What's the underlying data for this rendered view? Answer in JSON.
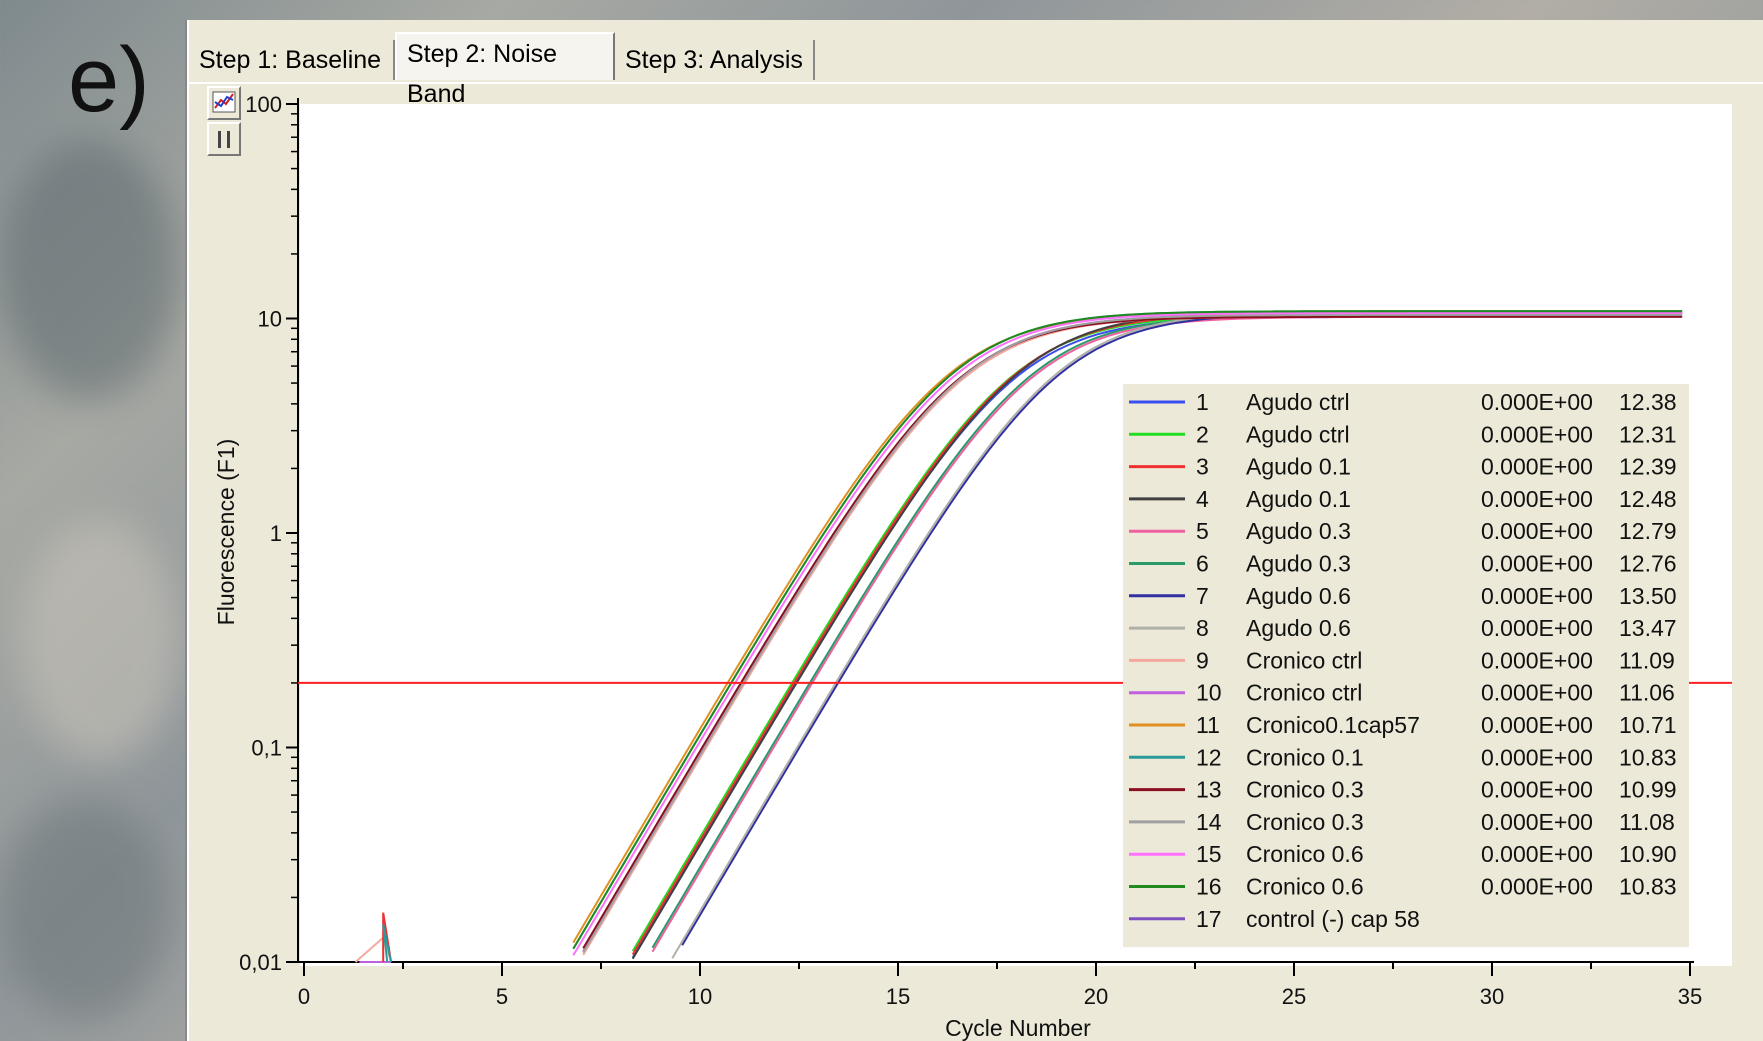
{
  "figure_label": "e)",
  "tabs": [
    {
      "label": "Step 1: Baseline",
      "active": false
    },
    {
      "label": "Step 2: Noise Band",
      "active": true
    },
    {
      "label": "Step 3: Analysis",
      "active": false
    }
  ],
  "tool_icons": [
    "chart-view-icon",
    "pause-icon"
  ],
  "chart_data": {
    "type": "line",
    "xlabel": "Cycle Number",
    "ylabel": "Fluorescence (F1)",
    "xlim": [
      0,
      35
    ],
    "ylim": [
      0.01,
      100
    ],
    "y_scale": "log",
    "x_ticks": [
      "0",
      "5",
      "10",
      "15",
      "20",
      "25",
      "30",
      "35"
    ],
    "y_ticks": [
      "0,01",
      "0,1",
      "1",
      "10",
      "100"
    ],
    "threshold": 0.2,
    "threshold_color": "#ff2020",
    "legend_placement": "right",
    "plateau": 10.5,
    "series": [
      {
        "num": "1",
        "name": "Agudo ctrl",
        "param": "0.000E+00",
        "ct": "12.38",
        "color": "#3a4ef0"
      },
      {
        "num": "2",
        "name": "Agudo ctrl",
        "param": "0.000E+00",
        "ct": "12.31",
        "color": "#22dd22"
      },
      {
        "num": "3",
        "name": "Agudo 0.1",
        "param": "0.000E+00",
        "ct": "12.39",
        "color": "#f03030"
      },
      {
        "num": "4",
        "name": "Agudo 0.1",
        "param": "0.000E+00",
        "ct": "12.48",
        "color": "#404040"
      },
      {
        "num": "5",
        "name": "Agudo 0.3",
        "param": "0.000E+00",
        "ct": "12.79",
        "color": "#f060a0"
      },
      {
        "num": "6",
        "name": "Agudo 0.3",
        "param": "0.000E+00",
        "ct": "12.76",
        "color": "#2a9a6a"
      },
      {
        "num": "7",
        "name": "Agudo 0.6",
        "param": "0.000E+00",
        "ct": "13.50",
        "color": "#3030a0"
      },
      {
        "num": "8",
        "name": "Agudo 0.6",
        "param": "0.000E+00",
        "ct": "13.47",
        "color": "#b0b0a8"
      },
      {
        "num": "9",
        "name": "Cronico ctrl",
        "param": "0.000E+00",
        "ct": "11.09",
        "color": "#f4a8a0"
      },
      {
        "num": "10",
        "name": "Cronico ctrl",
        "param": "0.000E+00",
        "ct": "11.06",
        "color": "#c060e0"
      },
      {
        "num": "11",
        "name": "Cronico0.1cap57",
        "param": "0.000E+00",
        "ct": "10.71",
        "color": "#e09020"
      },
      {
        "num": "12",
        "name": "Cronico 0.1",
        "param": "0.000E+00",
        "ct": "10.83",
        "color": "#2a9a9a"
      },
      {
        "num": "13",
        "name": "Cronico 0.3",
        "param": "0.000E+00",
        "ct": "10.99",
        "color": "#8a1020"
      },
      {
        "num": "14",
        "name": "Cronico 0.3",
        "param": "0.000E+00",
        "ct": "11.08",
        "color": "#a0a0a0"
      },
      {
        "num": "15",
        "name": "Cronico 0.6",
        "param": "0.000E+00",
        "ct": "10.90",
        "color": "#ff70ff"
      },
      {
        "num": "16",
        "name": "Cronico 0.6",
        "param": "0.000E+00",
        "ct": "10.83",
        "color": "#208a20"
      },
      {
        "num": "17",
        "name": "control (-) cap 58",
        "param": "",
        "ct": "",
        "color": "#8050c0"
      }
    ]
  }
}
